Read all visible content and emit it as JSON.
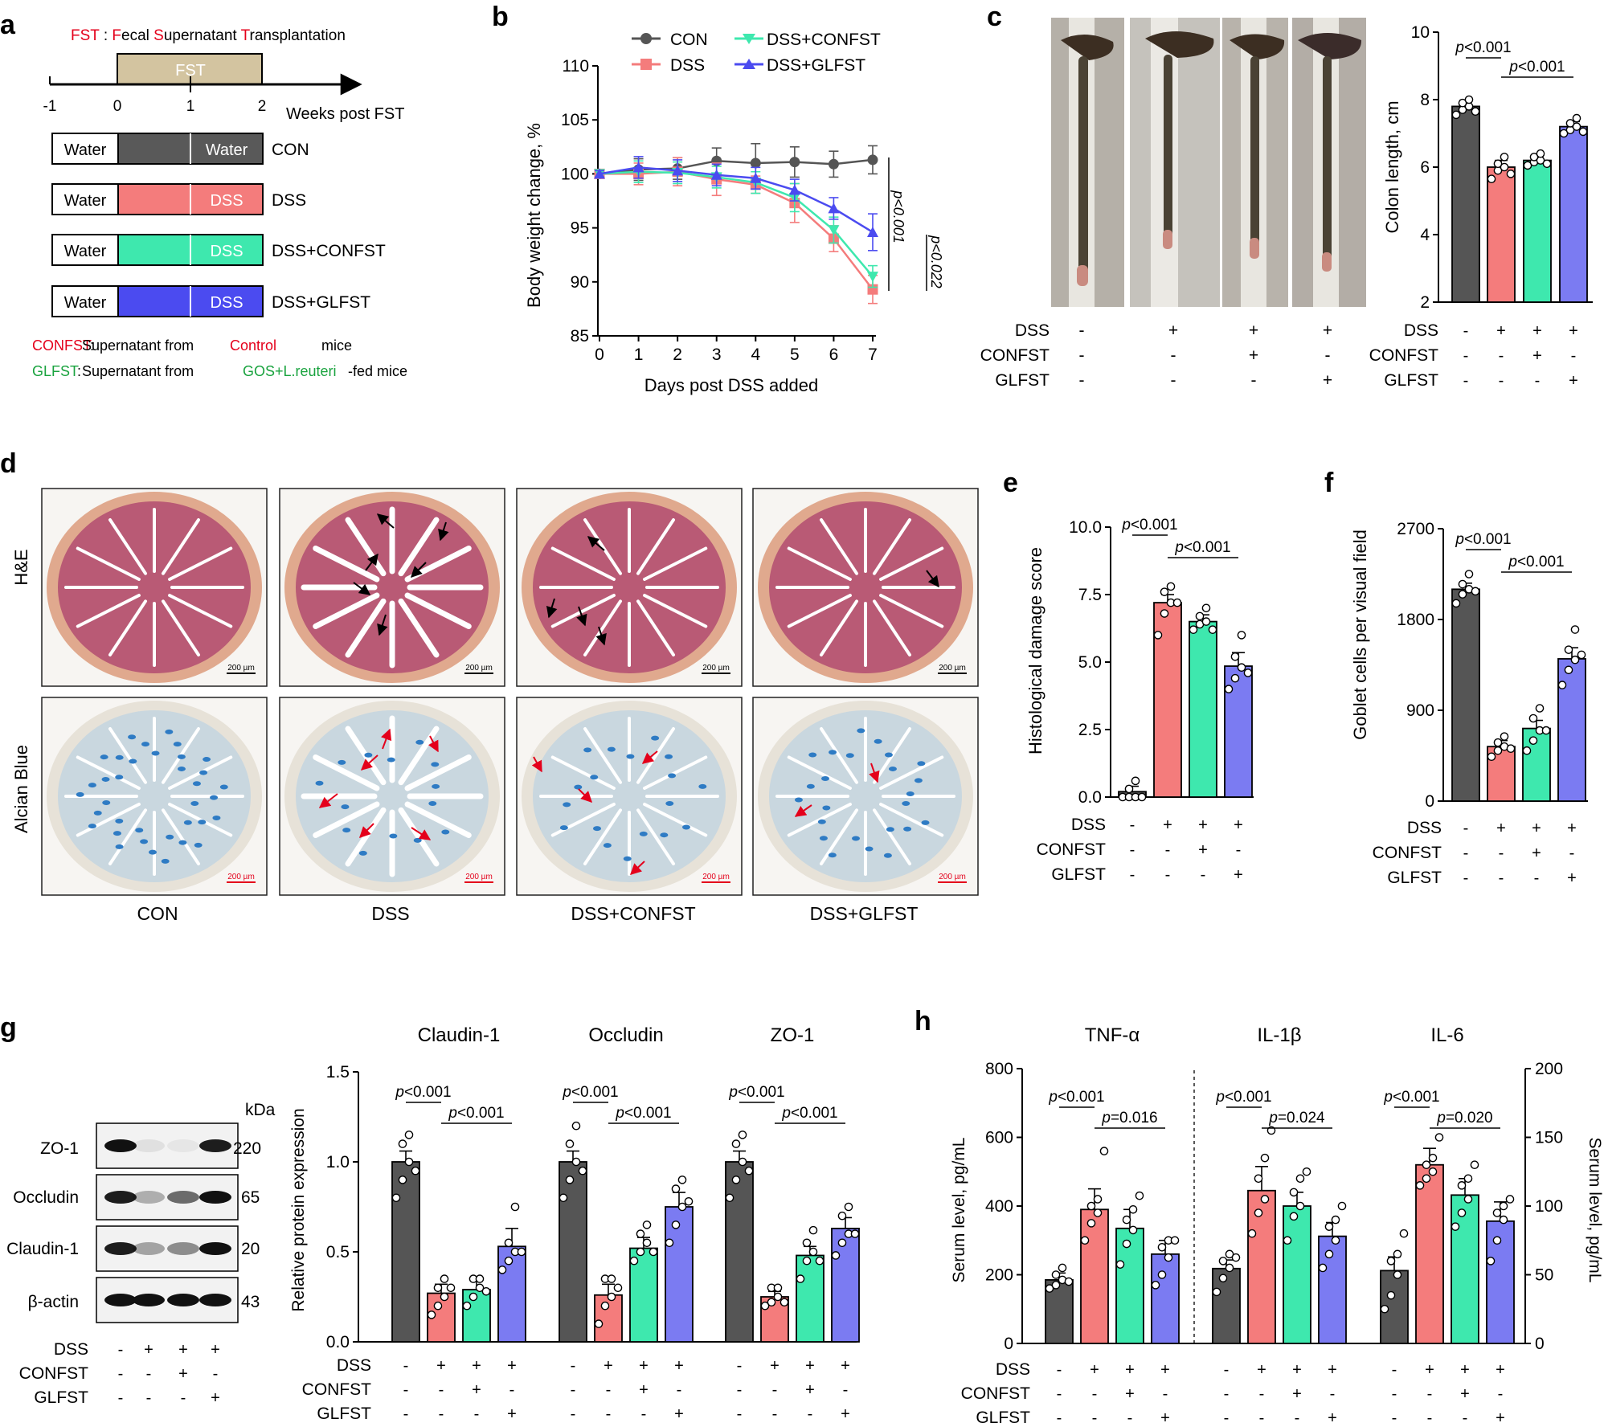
{
  "panels": {
    "a": "a",
    "b": "b",
    "c": "c",
    "d": "d",
    "e": "e",
    "f": "f",
    "g": "g",
    "h": "h"
  },
  "colors": {
    "con": "#555555",
    "dss": "#f47c7c",
    "confst": "#3ee8ae",
    "glfst": "#7b7bf2",
    "fst_bar": "#d3c4a0",
    "darkfill": "#595959",
    "tissue_he": "#c0667a",
    "tissue_ab": "#e6e1d8",
    "red_text": "#e4001b",
    "green_text": "#1aa33f"
  },
  "panel_a": {
    "fst_def": {
      "fst": "FST",
      "colon": " : ",
      "f": "F",
      "ecal": "ecal ",
      "s": "S",
      "upernatant": "upernatant ",
      "t": "T",
      "ransplantation": "ransplantation"
    },
    "bar_label": "FST",
    "ticks": [
      "-1",
      "0",
      "1",
      "2"
    ],
    "axis_label": "Weeks post FST",
    "rows": [
      {
        "left": "Water",
        "right": "Water",
        "name": "CON"
      },
      {
        "left": "Water",
        "right": "DSS",
        "name": "DSS"
      },
      {
        "left": "Water",
        "right": "DSS",
        "name": "DSS+CONFST"
      },
      {
        "left": "Water",
        "right": "DSS",
        "name": "DSS+GLFST"
      }
    ],
    "def1": {
      "k": "CONFST",
      "c": ":",
      "t1": "Supernatant from",
      "t2": "Control",
      "t3": "mice"
    },
    "def2": {
      "k": "GLFST",
      "c": ":",
      "t1": "Supernatant from",
      "t2": "GOS+L.reuteri",
      "t3": "-fed mice"
    }
  },
  "chart_data": [
    {
      "id": "b",
      "type": "line",
      "title": "",
      "xlabel": "Days post DSS added",
      "ylabel": "Body weight change,  %",
      "x": [
        0,
        1,
        2,
        3,
        4,
        5,
        6,
        7
      ],
      "ylim": [
        85,
        110
      ],
      "yticks": [
        "85",
        "90",
        "95",
        "100",
        "105",
        "110"
      ],
      "xticks": [
        "0",
        "1",
        "2",
        "3",
        "4",
        "5",
        "6",
        "7"
      ],
      "legend": [
        "CON",
        "DSS",
        "DSS+CONFST",
        "DSS+GLFST"
      ],
      "series": [
        {
          "name": "CON",
          "values": [
            100,
            100.4,
            100.5,
            101.2,
            101,
            101.1,
            100.9,
            101.3
          ],
          "err": [
            0.3,
            1,
            1,
            1.2,
            1.8,
            1.4,
            1.2,
            1.3
          ]
        },
        {
          "name": "DSS",
          "values": [
            100,
            100,
            100.2,
            99.5,
            99,
            97.3,
            94,
            89.3
          ],
          "err": [
            0.3,
            1,
            1.3,
            1.5,
            0.8,
            1.8,
            1.2,
            1.3
          ]
        },
        {
          "name": "DSS+CONFST",
          "values": [
            100,
            100.2,
            100.1,
            99.7,
            99.2,
            97.8,
            94.8,
            90.5
          ],
          "err": [
            0.3,
            1,
            1,
            1,
            1,
            1.3,
            1.2,
            1
          ]
        },
        {
          "name": "DSS+GLFST",
          "values": [
            100,
            100.6,
            100.3,
            99.9,
            99.6,
            98.5,
            96.8,
            94.6
          ],
          "err": [
            0.3,
            1,
            1,
            1,
            1,
            1,
            1,
            1.7
          ]
        }
      ],
      "annotations": [
        "p<0.001",
        "p<0.022"
      ]
    },
    {
      "id": "c",
      "type": "bar",
      "title": "",
      "xlabel": "",
      "ylabel": "Colon length,  cm",
      "categories": [
        "CON",
        "DSS",
        "DSS+CONFST",
        "DSS+GLFST"
      ],
      "ylim": [
        2,
        10
      ],
      "yticks": [
        "2",
        "4",
        "6",
        "8",
        "10"
      ],
      "values": [
        7.8,
        6.0,
        6.2,
        7.2
      ],
      "err": [
        0.18,
        0.2,
        0.12,
        0.15
      ],
      "points": [
        [
          7.55,
          7.7,
          7.8,
          7.9,
          8,
          7.65
        ],
        [
          5.65,
          5.9,
          6,
          6.1,
          6.3,
          5.8
        ],
        [
          6.05,
          6.15,
          6.2,
          6.3,
          6.4,
          6.1
        ],
        [
          7,
          7.1,
          7.2,
          7.3,
          7.45,
          7.05
        ]
      ],
      "annotations": [
        "p<0.001",
        "p<0.001"
      ]
    },
    {
      "id": "e",
      "type": "bar",
      "title": "",
      "xlabel": "",
      "ylabel": "Histological damage score",
      "categories": [
        "CON",
        "DSS",
        "DSS+CONFST",
        "DSS+GLFST"
      ],
      "ylim": [
        0,
        10
      ],
      "yticks": [
        "0.0",
        "2.5",
        "5.0",
        "7.5",
        "10.0"
      ],
      "values": [
        0.2,
        7.2,
        6.5,
        4.85
      ],
      "err": [
        0.2,
        0.3,
        0.25,
        0.5
      ],
      "points": [
        [
          0,
          0,
          0,
          0.3,
          0.6,
          0
        ],
        [
          6,
          6.8,
          7.2,
          7.6,
          7.8,
          7.2
        ],
        [
          6.2,
          6.4,
          6.5,
          6.7,
          7,
          6.2
        ],
        [
          4,
          4.4,
          4.8,
          5.2,
          6,
          4.6
        ]
      ],
      "annotations": [
        "p<0.001",
        "p<0.001"
      ]
    },
    {
      "id": "f",
      "type": "bar",
      "title": "",
      "xlabel": "",
      "ylabel": "Goblet cells per visual field",
      "categories": [
        "CON",
        "DSS",
        "DSS+CONFST",
        "DSS+GLFST"
      ],
      "ylim": [
        0,
        2700
      ],
      "yticks": [
        "0",
        "900",
        "1800",
        "2700"
      ],
      "values": [
        2100,
        540,
        720,
        1410
      ],
      "err": [
        60,
        60,
        80,
        110
      ],
      "points": [
        [
          1960,
          2050,
          2100,
          2150,
          2250,
          2080
        ],
        [
          440,
          500,
          540,
          580,
          640,
          520
        ],
        [
          500,
          600,
          700,
          820,
          920,
          700
        ],
        [
          1150,
          1300,
          1400,
          1500,
          1700,
          1450
        ]
      ],
      "annotations": [
        "p<0.001",
        "p<0.001"
      ]
    },
    {
      "id": "g",
      "type": "bar",
      "title": "",
      "xlabel": "",
      "ylabel": "Relative protein expression",
      "groups": [
        "Claudin-1",
        "Occludin",
        "ZO-1"
      ],
      "ylim": [
        0,
        1.5
      ],
      "yticks": [
        "0.0",
        "0.5",
        "1.0",
        "1.5"
      ],
      "series": [
        {
          "name": "Claudin-1",
          "values": [
            1.0,
            0.27,
            0.29,
            0.53
          ],
          "err": [
            0.06,
            0.05,
            0.05,
            0.1
          ],
          "points": [
            [
              0.8,
              0.9,
              1,
              1.1,
              1.15,
              0.95
            ],
            [
              0.15,
              0.2,
              0.25,
              0.3,
              0.35,
              0.3
            ],
            [
              0.2,
              0.25,
              0.3,
              0.35,
              0.35,
              0.28
            ],
            [
              0.4,
              0.45,
              0.5,
              0.55,
              0.75,
              0.5
            ]
          ]
        },
        {
          "name": "Occludin",
          "values": [
            1.0,
            0.26,
            0.52,
            0.75
          ],
          "err": [
            0.06,
            0.06,
            0.06,
            0.08
          ],
          "points": [
            [
              0.8,
              0.9,
              1,
              1.1,
              1.2,
              0.95
            ],
            [
              0.1,
              0.2,
              0.25,
              0.35,
              0.35,
              0.3
            ],
            [
              0.45,
              0.5,
              0.55,
              0.6,
              0.65,
              0.5
            ],
            [
              0.55,
              0.65,
              0.75,
              0.85,
              0.9,
              0.78
            ]
          ]
        },
        {
          "name": "ZO-1",
          "values": [
            1.0,
            0.25,
            0.48,
            0.63
          ],
          "err": [
            0.06,
            0.03,
            0.05,
            0.06
          ],
          "points": [
            [
              0.8,
              0.9,
              1,
              1.1,
              1.15,
              0.95
            ],
            [
              0.2,
              0.22,
              0.25,
              0.3,
              0.3,
              0.22
            ],
            [
              0.35,
              0.45,
              0.5,
              0.55,
              0.62,
              0.45
            ],
            [
              0.48,
              0.55,
              0.6,
              0.7,
              0.75,
              0.6
            ]
          ]
        }
      ],
      "annotations": [
        "p<0.001",
        "p<0.001",
        "p<0.001",
        "p<0.001",
        "p<0.001",
        "p<0.001"
      ]
    },
    {
      "id": "h",
      "type": "bar",
      "title": "",
      "xlabel": "",
      "ylabel": "Serum level, pg/mL",
      "groups": [
        "TNF-α",
        "IL-1β",
        "IL-6"
      ],
      "ylim": [
        0,
        800
      ],
      "ylim_right": [
        0,
        200
      ],
      "yticks": [
        "0",
        "200",
        "400",
        "600",
        "800"
      ],
      "yticks_right": [
        "0",
        "50",
        "100",
        "150",
        "200"
      ],
      "ylabel_right": "Serum level, pg/mL",
      "series": [
        {
          "name": "TNF-α",
          "axis": "left",
          "values": [
            185,
            390,
            335,
            260
          ],
          "err": [
            20,
            60,
            55,
            40
          ],
          "points": [
            [
              160,
              170,
              185,
              200,
              220,
              180
            ],
            [
              300,
              350,
              380,
              400,
              420,
              560
            ],
            [
              230,
              290,
              330,
              360,
              390,
              430
            ],
            [
              170,
              200,
              250,
              280,
              300,
              300
            ]
          ]
        },
        {
          "name": "IL-1β",
          "axis": "left",
          "values": [
            218,
            445,
            400,
            312
          ],
          "err": [
            25,
            70,
            40,
            40
          ],
          "points": [
            [
              150,
              190,
              220,
              240,
              260,
              250
            ],
            [
              320,
              380,
              420,
              480,
              540,
              620
            ],
            [
              300,
              370,
              400,
              440,
              480,
              500
            ],
            [
              220,
              260,
              300,
              340,
              360,
              400
            ]
          ]
        },
        {
          "name": "IL-6",
          "axis": "right",
          "values": [
            53,
            130,
            108,
            89
          ],
          "err": [
            10,
            12,
            12,
            14
          ],
          "points": [
            [
              25,
              35,
              50,
              60,
              65,
              80
            ],
            [
              115,
              120,
              125,
              130,
              135,
              150
            ],
            [
              85,
              95,
              105,
              115,
              120,
              130
            ],
            [
              60,
              75,
              90,
              95,
              100,
              105
            ]
          ]
        }
      ],
      "annotations": [
        "p<0.001",
        "p=0.016",
        "p<0.001",
        "p=0.024",
        "p<0.001",
        "p=0.020"
      ]
    }
  ],
  "treat_rows": {
    "dss": "DSS",
    "confst": "CONFST",
    "glfst": "GLFST",
    "pm_dss": [
      "-",
      "+",
      "+",
      "+"
    ],
    "pm_confst": [
      "-",
      "-",
      "+",
      "-"
    ],
    "pm_glfst": [
      "-",
      "-",
      "-",
      "+"
    ]
  },
  "panel_d": {
    "row_labels": [
      "H&E",
      "Alcian Blue"
    ],
    "col_labels": [
      "CON",
      "DSS",
      "DSS+CONFST",
      "DSS+GLFST"
    ],
    "scale": "200 µm"
  },
  "panel_g_blot": {
    "kda": "kDa",
    "bands": [
      {
        "name": "ZO-1",
        "kda": "220"
      },
      {
        "name": "Occludin",
        "kda": "65"
      },
      {
        "name": "Claudin-1",
        "kda": "20"
      },
      {
        "name": "β-actin",
        "kda": "43"
      }
    ]
  }
}
